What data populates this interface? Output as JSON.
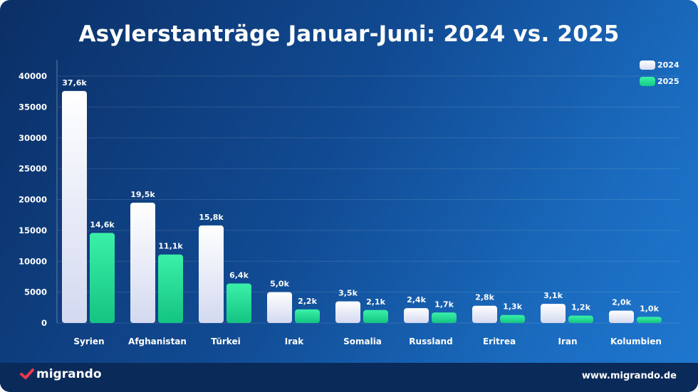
{
  "chart_data": {
    "type": "bar",
    "title": "Asylerstanträge Januar-Juni: 2024 vs. 2025",
    "categories": [
      "Syrien",
      "Afghanistan",
      "Türkei",
      "Irak",
      "Somalia",
      "Russland",
      "Eritrea",
      "Iran",
      "Kolumbien"
    ],
    "series": [
      {
        "name": "2024",
        "values": [
          37600,
          19500,
          15800,
          5000,
          3500,
          2400,
          2800,
          3100,
          2000
        ],
        "labels": [
          "37,6k",
          "19,5k",
          "15,8k",
          "5,0k",
          "3,5k",
          "2,4k",
          "2,8k",
          "3,1k",
          "2,0k"
        ],
        "color": "#e8ecf8"
      },
      {
        "name": "2025",
        "values": [
          14600,
          11100,
          6400,
          2200,
          2100,
          1700,
          1300,
          1200,
          1000
        ],
        "labels": [
          "14,6k",
          "11,1k",
          "6,4k",
          "2,2k",
          "2,1k",
          "1,7k",
          "1,3k",
          "1,2k",
          "1,0k"
        ],
        "color": "#22dd96"
      }
    ],
    "yticks": [
      "0",
      "5000",
      "10000",
      "15000",
      "20000",
      "25000",
      "30000",
      "35000",
      "40000"
    ],
    "ylim": [
      0,
      40000
    ],
    "grid": true,
    "legend": "top-right",
    "xlabel": "",
    "ylabel": ""
  },
  "footer": {
    "brand": "migrando",
    "website": "www.migrando.de"
  },
  "colors": {
    "logo_check": "#e8394f",
    "footer": "#0a2a5a"
  }
}
